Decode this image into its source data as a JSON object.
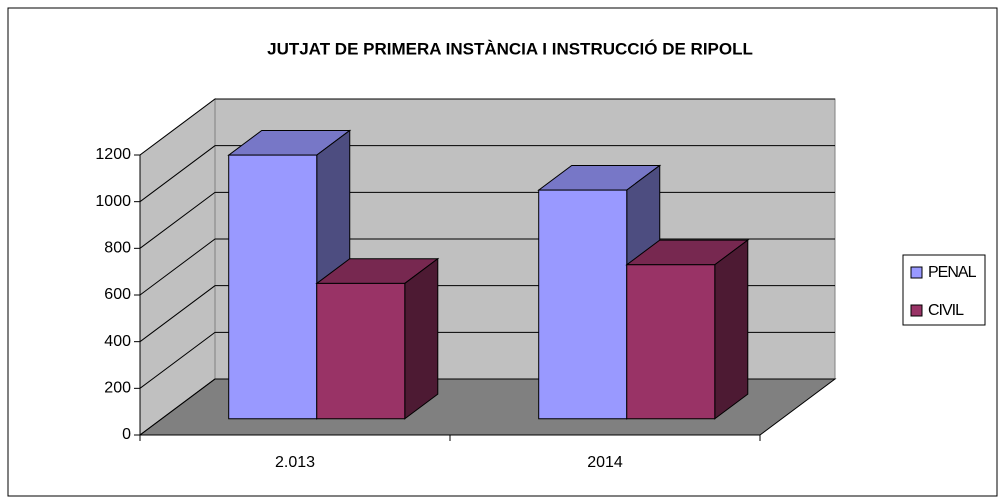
{
  "chart_data": {
    "type": "bar3d",
    "title": "JUTJAT DE PRIMERA INSTÀNCIA I INSTRUCCIÓ DE RIPOLL",
    "categories": [
      "2.013",
      "2014"
    ],
    "series": [
      {
        "name": "PENAL",
        "color": "#9999ff",
        "values": [
          1130,
          980
        ]
      },
      {
        "name": "CIVIL",
        "color": "#993366",
        "values": [
          580,
          660
        ]
      }
    ],
    "ylim": [
      0,
      1200
    ],
    "yticks": [
      0,
      200,
      400,
      600,
      800,
      1000,
      1200
    ],
    "grid": true,
    "legend": "right"
  }
}
